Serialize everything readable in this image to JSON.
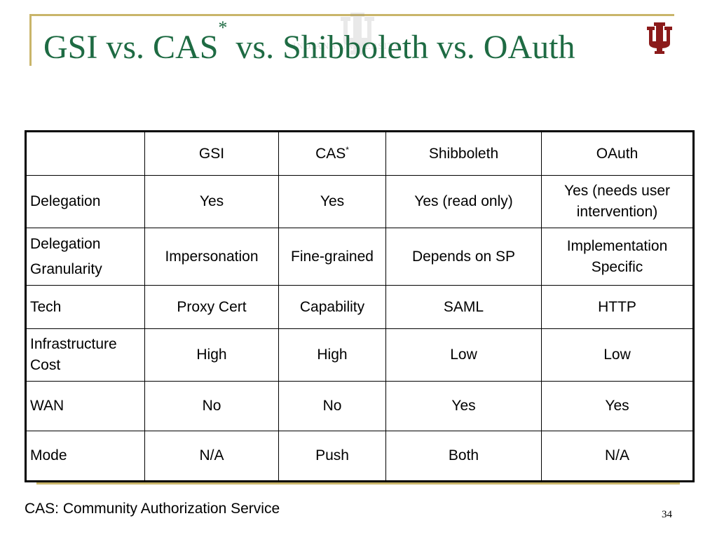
{
  "title": {
    "part1": "GSI vs. CAS",
    "sup": "*",
    "part2": " vs. Shibboleth vs. OAuth"
  },
  "watermark_text": "INDIANA UNIVERSITY",
  "colors": {
    "title": "#1E6B43",
    "accent_line": "#C9B56A",
    "logo": "#8B1A1A"
  },
  "icons": {
    "logo": "iu-trident-icon"
  },
  "table": {
    "headers": [
      "",
      "GSI",
      "CAS",
      "Shibboleth",
      "OAuth"
    ],
    "header_sup": "*",
    "rows": [
      {
        "label": "Delegation",
        "cells": [
          "Yes",
          "Yes",
          "Yes (read only)",
          "Yes (needs user intervention)"
        ]
      },
      {
        "label_line1": "Delegation",
        "label_line2": "Granularity",
        "cells": [
          "Impersonation",
          "Fine-grained",
          "Depends on SP",
          "Implementation Specific"
        ]
      },
      {
        "label": "Tech",
        "cells": [
          "Proxy Cert",
          "Capability",
          "SAML",
          "HTTP"
        ]
      },
      {
        "label": "Infrastructure Cost",
        "cells": [
          "High",
          "High",
          "Low",
          "Low"
        ]
      },
      {
        "label": "WAN",
        "cells": [
          "No",
          "No",
          "Yes",
          "Yes"
        ]
      },
      {
        "label": "Mode",
        "cells": [
          "N/A",
          "Push",
          "Both",
          "N/A"
        ]
      }
    ]
  },
  "footnote": "CAS: Community Authorization Service",
  "page_number": "34"
}
